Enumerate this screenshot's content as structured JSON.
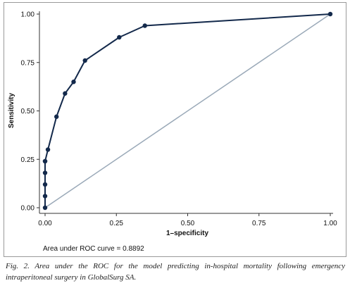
{
  "chart_data": {
    "type": "line",
    "title": "",
    "xlabel": "1–specificity",
    "ylabel": "Sensitivity",
    "xlim": [
      0,
      1
    ],
    "ylim": [
      0,
      1
    ],
    "x_ticks": [
      "0.00",
      "0.25",
      "0.50",
      "0.75",
      "1.00"
    ],
    "y_ticks": [
      "0.00",
      "0.25",
      "0.50",
      "0.75",
      "1.00"
    ],
    "grid": false,
    "legend": "none",
    "series": [
      {
        "name": "",
        "color": "#13294b",
        "marker": "circle",
        "x": [
          0.0,
          0.0,
          0.0,
          0.0,
          0.0,
          0.0,
          0.01,
          0.04,
          0.07,
          0.1,
          0.14,
          0.26,
          0.35,
          1.0
        ],
        "y": [
          0.0,
          0.06,
          0.12,
          0.18,
          0.24,
          0.24,
          0.3,
          0.47,
          0.59,
          0.65,
          0.76,
          0.88,
          0.94,
          1.0
        ]
      },
      {
        "name": "",
        "color": "#9aa9b8",
        "marker": "none",
        "x": [
          0,
          1
        ],
        "y": [
          0,
          1
        ]
      }
    ],
    "annotation": "Area under ROC curve = 0.8892"
  },
  "caption": "Fig. 2. Area under the ROC for the model predicting in-hospital mortality following emergency intraperitoneal surgery in GlobalSurg SA."
}
